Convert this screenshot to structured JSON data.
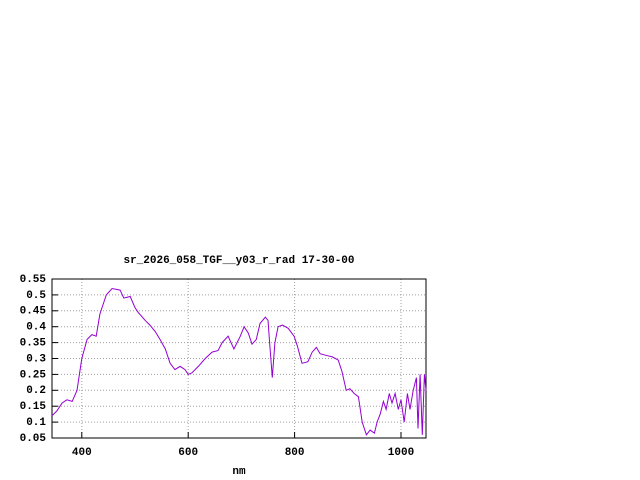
{
  "chart_data": {
    "type": "line",
    "title": "sr_2026_058_TGF__y03_r_rad 17-30-00",
    "x_label": "nm",
    "x": [
      344,
      353,
      363,
      372,
      382,
      391,
      400,
      410,
      419,
      427,
      434,
      446,
      457,
      472,
      479,
      491,
      500,
      506,
      519,
      528,
      538,
      547,
      557,
      566,
      575,
      585,
      594,
      600,
      607,
      619,
      632,
      645,
      656,
      664,
      675,
      686,
      698,
      705,
      713,
      720,
      728,
      735,
      745,
      750,
      754,
      758,
      763,
      769,
      777,
      788,
      799,
      805,
      814,
      825,
      833,
      841,
      848,
      859,
      871,
      882,
      889,
      897,
      904,
      912,
      920,
      927,
      935,
      942,
      950,
      955,
      961,
      967,
      972,
      978,
      983,
      989,
      995,
      1000,
      1006,
      1012,
      1017,
      1023,
      1029,
      1032,
      1036,
      1040,
      1044,
      1047
    ],
    "series": [
      {
        "color": "#9400d3",
        "values": [
          0.12,
          0.135,
          0.16,
          0.17,
          0.165,
          0.2,
          0.3,
          0.36,
          0.375,
          0.37,
          0.44,
          0.5,
          0.52,
          0.515,
          0.49,
          0.495,
          0.46,
          0.445,
          0.42,
          0.405,
          0.385,
          0.36,
          0.33,
          0.285,
          0.265,
          0.275,
          0.265,
          0.25,
          0.255,
          0.275,
          0.3,
          0.32,
          0.325,
          0.35,
          0.37,
          0.33,
          0.37,
          0.4,
          0.38,
          0.345,
          0.36,
          0.41,
          0.43,
          0.42,
          0.33,
          0.24,
          0.35,
          0.4,
          0.405,
          0.395,
          0.37,
          0.34,
          0.285,
          0.29,
          0.32,
          0.335,
          0.315,
          0.31,
          0.305,
          0.295,
          0.26,
          0.2,
          0.205,
          0.19,
          0.18,
          0.1,
          0.06,
          0.075,
          0.065,
          0.1,
          0.125,
          0.165,
          0.14,
          0.19,
          0.16,
          0.19,
          0.14,
          0.17,
          0.1,
          0.19,
          0.14,
          0.2,
          0.24,
          0.08,
          0.25,
          0.06,
          0.25,
          0.2
        ]
      }
    ],
    "xlim": [
      344,
      1047
    ],
    "xticks": [
      400,
      600,
      800,
      1000
    ],
    "ylim": [
      0.05,
      0.55
    ],
    "yticks": [
      0.05,
      0.1,
      0.15,
      0.2,
      0.25,
      0.3,
      0.35,
      0.4,
      0.45,
      0.5,
      0.55
    ],
    "grid": true
  }
}
